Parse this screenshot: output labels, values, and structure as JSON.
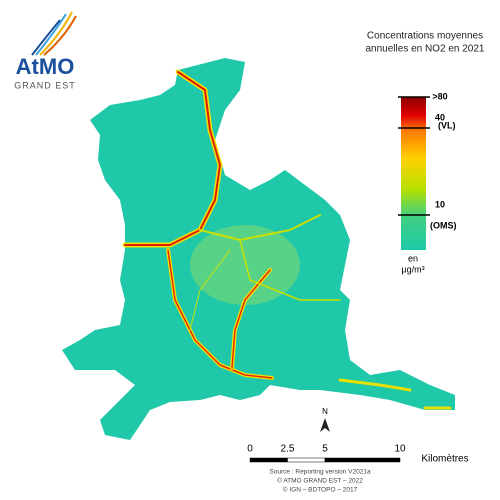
{
  "logo": {
    "name": "AtMO",
    "region": "GRAND EST"
  },
  "title": [
    "Concentrations moyennes",
    "annuelles en NO2 en 2021"
  ],
  "legend": {
    "ticks": [
      {
        "value": 80,
        "label": ">80"
      },
      40,
      10
    ],
    "notes": [
      "(VL)",
      "(OMS)"
    ],
    "unit": [
      "en",
      "µg/m³"
    ]
  },
  "scale": {
    "ticks": [
      0,
      2.5,
      5,
      10
    ],
    "unit": "Kilomètres"
  },
  "north": "N",
  "sources": [
    "Source : Reporting version V2021a",
    "© ATMO GRAND EST – 2022",
    "© IGN – BDTOPO – 2017"
  ]
}
